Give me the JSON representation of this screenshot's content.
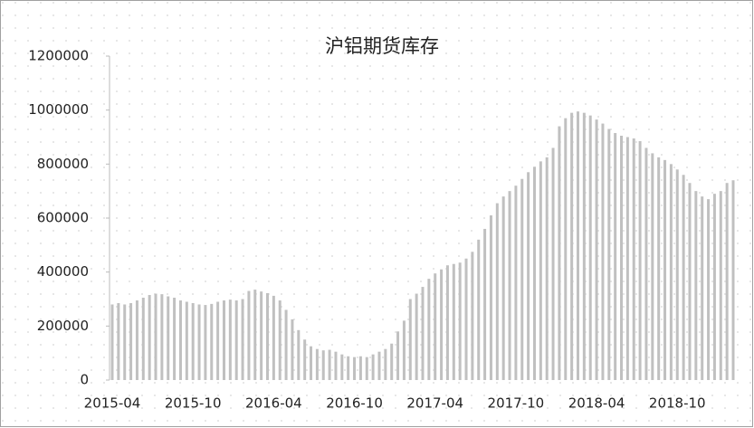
{
  "chart_data": {
    "type": "bar",
    "title": "沪铝期货库存",
    "categories": [
      "2015-04",
      null,
      null,
      null,
      null,
      null,
      null,
      null,
      null,
      null,
      null,
      null,
      null,
      "2015-10",
      null,
      null,
      null,
      null,
      null,
      null,
      null,
      null,
      null,
      null,
      null,
      null,
      "2016-04",
      null,
      null,
      null,
      null,
      null,
      null,
      null,
      null,
      null,
      null,
      null,
      null,
      "2016-10",
      null,
      null,
      null,
      null,
      null,
      null,
      null,
      null,
      null,
      null,
      null,
      null,
      "2017-04",
      null,
      null,
      null,
      null,
      null,
      null,
      null,
      null,
      null,
      null,
      null,
      null,
      "2017-10",
      null,
      null,
      null,
      null,
      null,
      null,
      null,
      null,
      null,
      null,
      null,
      null,
      "2018-04",
      null,
      null,
      null,
      null,
      null,
      null,
      null,
      null,
      null,
      null,
      null,
      null,
      "2018-10",
      null,
      null,
      null,
      null,
      null,
      null,
      null,
      null,
      null
    ],
    "values": [
      280000,
      285000,
      280000,
      285000,
      295000,
      305000,
      315000,
      320000,
      318000,
      310000,
      305000,
      295000,
      290000,
      285000,
      280000,
      278000,
      282000,
      290000,
      295000,
      298000,
      295000,
      300000,
      330000,
      335000,
      328000,
      322000,
      312000,
      295000,
      260000,
      225000,
      185000,
      150000,
      125000,
      115000,
      110000,
      112000,
      105000,
      95000,
      88000,
      85000,
      88000,
      85000,
      95000,
      105000,
      115000,
      135000,
      180000,
      220000,
      300000,
      320000,
      345000,
      375000,
      395000,
      410000,
      425000,
      430000,
      435000,
      450000,
      475000,
      520000,
      560000,
      610000,
      655000,
      680000,
      700000,
      720000,
      745000,
      770000,
      790000,
      810000,
      825000,
      860000,
      940000,
      970000,
      990000,
      995000,
      990000,
      980000,
      965000,
      950000,
      930000,
      915000,
      905000,
      900000,
      895000,
      885000,
      860000,
      840000,
      825000,
      815000,
      800000,
      780000,
      760000,
      730000,
      700000,
      680000,
      670000,
      690000,
      700000,
      730000,
      740000
    ],
    "color": "#c0c0c0",
    "ylim": [
      0,
      1200000
    ],
    "yticks": [
      0,
      200000,
      400000,
      600000,
      800000,
      1000000,
      1200000
    ]
  }
}
